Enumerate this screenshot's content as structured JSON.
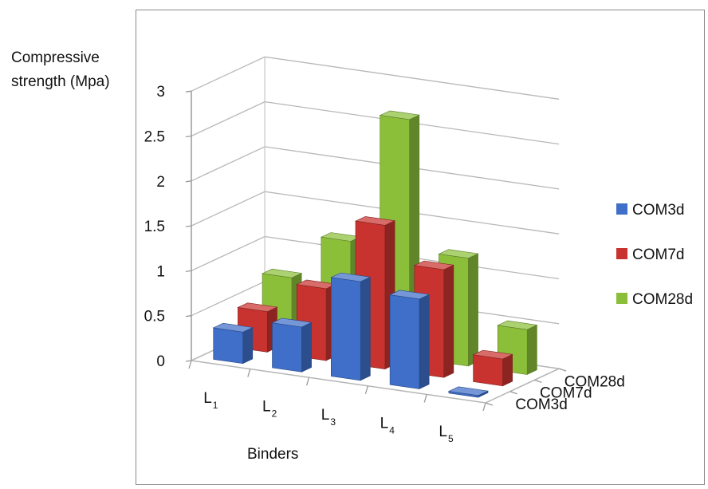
{
  "chart_data": {
    "type": "bar",
    "subtype": "3d-clustered-depth",
    "title": "",
    "ylabel_lines": [
      "Compressive",
      "strength (Mpa)"
    ],
    "xlabel": "Binders",
    "categories": [
      {
        "base": "L",
        "sub": "1"
      },
      {
        "base": "L",
        "sub": "2"
      },
      {
        "base": "L",
        "sub": "3"
      },
      {
        "base": "L",
        "sub": "4"
      },
      {
        "base": "L",
        "sub": "5"
      }
    ],
    "series": [
      {
        "name": "COM3d",
        "color": "#3f6fc9",
        "values": [
          0.35,
          0.5,
          1.1,
          1.0,
          0.02
        ]
      },
      {
        "name": "COM7d",
        "color": "#c8332f",
        "values": [
          0.45,
          0.8,
          1.6,
          1.2,
          0.3
        ]
      },
      {
        "name": "COM28d",
        "color": "#8bbf3a",
        "values": [
          0.7,
          1.2,
          2.65,
          1.2,
          0.5
        ]
      }
    ],
    "yticks": [
      "0",
      "0.5",
      "1",
      "1.5",
      "2",
      "2.5",
      "3"
    ],
    "ylim": [
      0,
      3
    ],
    "grid": true,
    "legend": "right"
  }
}
